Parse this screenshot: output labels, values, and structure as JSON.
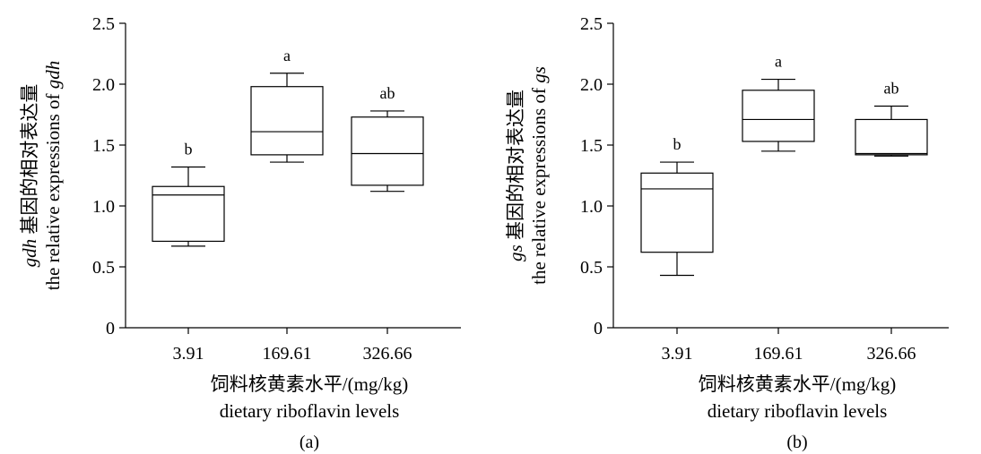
{
  "chart_data": [
    {
      "type": "box",
      "panel_label": "(a)",
      "xlabel_cn": "饲料核黄素水平/(mg/kg)",
      "xlabel_en": "dietary riboflavin levels",
      "ylabel_line1_italic": "gdh",
      "ylabel_line1_text": " 基因的相对表达量",
      "ylabel_line2_text": "the relative expressions of ",
      "ylabel_line2_italic": "gdh",
      "ylim": [
        0,
        2.5
      ],
      "yticks": [
        "0",
        "0.5",
        "1.0",
        "1.5",
        "2.0",
        "2.5"
      ],
      "categories": [
        "3.91",
        "169.61",
        "326.66"
      ],
      "boxes": [
        {
          "min": 0.67,
          "q1": 0.71,
          "median": 1.09,
          "q3": 1.16,
          "max": 1.32,
          "label": "b"
        },
        {
          "min": 1.36,
          "q1": 1.42,
          "median": 1.61,
          "q3": 1.98,
          "max": 2.09,
          "label": "a"
        },
        {
          "min": 1.12,
          "q1": 1.17,
          "median": 1.43,
          "q3": 1.73,
          "max": 1.78,
          "label": "ab"
        }
      ]
    },
    {
      "type": "box",
      "panel_label": "(b)",
      "xlabel_cn": "饲料核黄素水平/(mg/kg)",
      "xlabel_en": "dietary riboflavin levels",
      "ylabel_line1_italic": "gs",
      "ylabel_line1_text": " 基因的相对表达量",
      "ylabel_line2_text": "the relative expressions of ",
      "ylabel_line2_italic": "gs",
      "ylim": [
        0,
        2.5
      ],
      "yticks": [
        "0",
        "0.5",
        "1.0",
        "1.5",
        "2.0",
        "2.5"
      ],
      "categories": [
        "3.91",
        "169.61",
        "326.66"
      ],
      "boxes": [
        {
          "min": 0.43,
          "q1": 0.62,
          "median": 1.14,
          "q3": 1.27,
          "max": 1.36,
          "label": "b"
        },
        {
          "min": 1.45,
          "q1": 1.53,
          "median": 1.71,
          "q3": 1.95,
          "max": 2.04,
          "label": "a"
        },
        {
          "min": 1.41,
          "q1": 1.42,
          "median": 1.43,
          "q3": 1.71,
          "max": 1.82,
          "label": "ab"
        }
      ]
    }
  ]
}
